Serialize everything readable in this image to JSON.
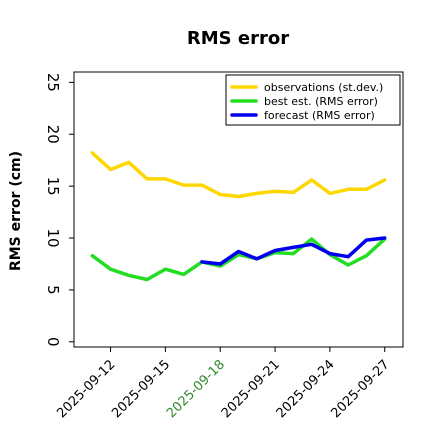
{
  "chart_data": {
    "type": "line",
    "title": "RMS error",
    "xlabel": "",
    "ylabel": "RMS error (cm)",
    "x": [
      "2025-09-11",
      "2025-09-12",
      "2025-09-13",
      "2025-09-14",
      "2025-09-15",
      "2025-09-16",
      "2025-09-17",
      "2025-09-18",
      "2025-09-19",
      "2025-09-20",
      "2025-09-21",
      "2025-09-22",
      "2025-09-23",
      "2025-09-24",
      "2025-09-25",
      "2025-09-26",
      "2025-09-27"
    ],
    "xlim": [
      "2025-09-10",
      "2025-09-28"
    ],
    "xticks": [
      "2025-09-12",
      "2025-09-15",
      "2025-09-18",
      "2025-09-21",
      "2025-09-24",
      "2025-09-27"
    ],
    "highlight_tick": "2025-09-18",
    "highlight_color": "#2e8b2e",
    "ylim": [
      -0.5,
      26
    ],
    "yticks": [
      0,
      5,
      10,
      15,
      20,
      25
    ],
    "grid": false,
    "legend_position": "top-right",
    "series": [
      {
        "name": "observations (st.dev.)",
        "color": "#ffd700",
        "values": [
          18.2,
          16.6,
          17.3,
          15.7,
          15.7,
          15.1,
          15.1,
          14.2,
          14.0,
          14.3,
          14.5,
          14.4,
          15.6,
          14.3,
          14.7,
          14.7,
          15.6
        ]
      },
      {
        "name": "best est. (RMS error)",
        "color": "#22dd22",
        "values": [
          8.3,
          7.0,
          6.4,
          6.0,
          7.0,
          6.5,
          7.7,
          7.3,
          8.4,
          8.0,
          8.6,
          8.5,
          9.9,
          8.4,
          7.4,
          8.3,
          9.9
        ]
      },
      {
        "name": "forecast (RMS error)",
        "color": "#0000ee",
        "values": [
          null,
          null,
          null,
          null,
          null,
          null,
          7.7,
          7.5,
          8.7,
          8.0,
          8.8,
          9.1,
          9.4,
          8.5,
          8.2,
          9.8,
          10.0
        ]
      }
    ]
  }
}
